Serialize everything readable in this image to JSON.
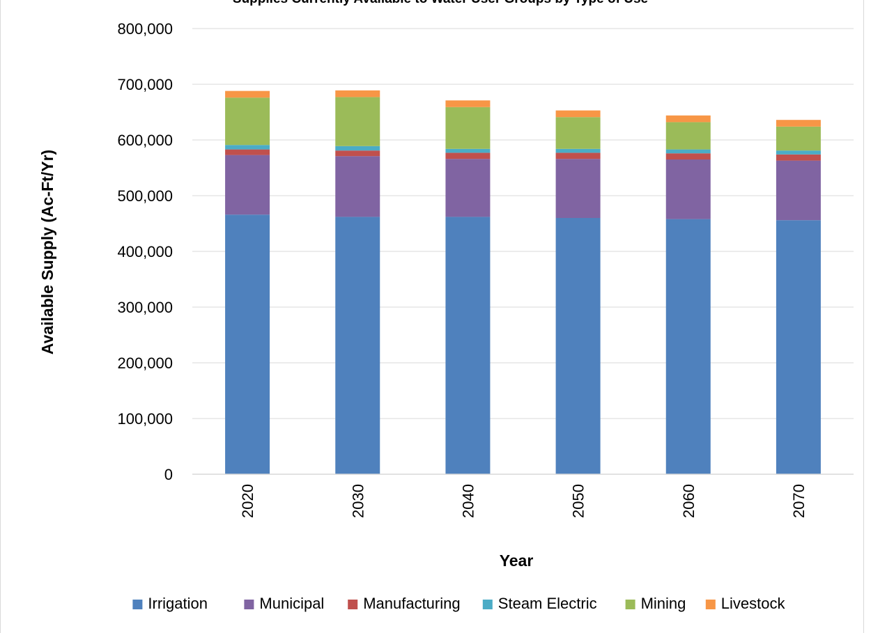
{
  "chart_data": {
    "type": "bar",
    "stacked": true,
    "title": "Supplies Currently Available to Water User Groups by Type of Use",
    "xlabel": "Year",
    "ylabel": "Available Supply (Ac-Ft/Yr)",
    "ylim": [
      0,
      800000
    ],
    "yticks": [
      0,
      100000,
      200000,
      300000,
      400000,
      500000,
      600000,
      700000,
      800000
    ],
    "ytick_labels": [
      "0",
      "100,000",
      "200,000",
      "300,000",
      "400,000",
      "500,000",
      "600,000",
      "700,000",
      "800,000"
    ],
    "grid": true,
    "legend_position": "bottom",
    "categories": [
      "2020",
      "2030",
      "2040",
      "2050",
      "2060",
      "2070"
    ],
    "series": [
      {
        "name": "Irrigation",
        "color": "#4f81bd",
        "values": [
          466000,
          462000,
          462000,
          460000,
          458000,
          456000
        ]
      },
      {
        "name": "Municipal",
        "color": "#8064a2",
        "values": [
          107000,
          109000,
          104000,
          106000,
          107000,
          107000
        ]
      },
      {
        "name": "Manufacturing",
        "color": "#c0504d",
        "values": [
          10000,
          10000,
          11000,
          11000,
          11000,
          11000
        ]
      },
      {
        "name": "Steam Electric",
        "color": "#4bacc6",
        "values": [
          8000,
          8000,
          7000,
          7000,
          7000,
          7000
        ]
      },
      {
        "name": "Mining",
        "color": "#9bbb59",
        "values": [
          85000,
          88000,
          75000,
          57000,
          49000,
          43000
        ]
      },
      {
        "name": "Livestock",
        "color": "#f79646",
        "values": [
          12000,
          12000,
          12000,
          12000,
          12000,
          12000
        ]
      }
    ]
  }
}
